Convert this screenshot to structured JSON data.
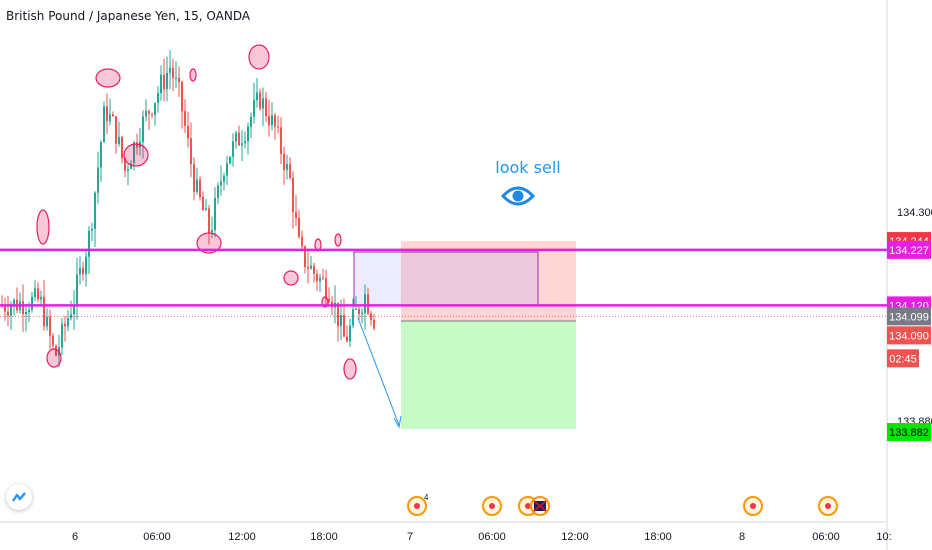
{
  "title": "British Pound / Japanese Yen, 15, OANDA",
  "annotation": {
    "text": "look sell",
    "icon": "eye-icon"
  },
  "colors": {
    "up": "#26a69a",
    "down": "#ef5350",
    "level_line": "#e91ee3",
    "current_price": "#e57373",
    "target": "#00e600",
    "text_blue": "#2196f3"
  },
  "chart_data": {
    "type": "candlestick",
    "symbol": "GBPJPY",
    "interval": "15",
    "broker": "OANDA",
    "y_ticks": [
      "134.300",
      "133.880"
    ],
    "x_ticks": [
      "6",
      "06:00",
      "12:00",
      "18:00",
      "7",
      "06:00",
      "12:00",
      "18:00",
      "8",
      "06:00",
      "10:"
    ],
    "price_labels": [
      {
        "value": "134.244",
        "role": "stop"
      },
      {
        "value": "134.227",
        "role": "level"
      },
      {
        "value": "134.120",
        "role": "level"
      },
      {
        "value": "134.099",
        "role": "last"
      },
      {
        "value": "134.090",
        "role": "entry"
      },
      {
        "value": "02:45",
        "role": "countdown"
      },
      {
        "value": "133.882",
        "role": "target"
      }
    ],
    "horizontal_levels": [
      134.227,
      134.12
    ],
    "position": {
      "type": "short",
      "entry": 134.09,
      "stop": 134.244,
      "target": 133.882
    },
    "events": [
      {
        "x": "7",
        "count": "4"
      },
      {
        "x": "06:00"
      },
      {
        "x": "09:00",
        "flag": "uk"
      },
      {
        "x": "8"
      },
      {
        "x": "06:00"
      }
    ]
  }
}
